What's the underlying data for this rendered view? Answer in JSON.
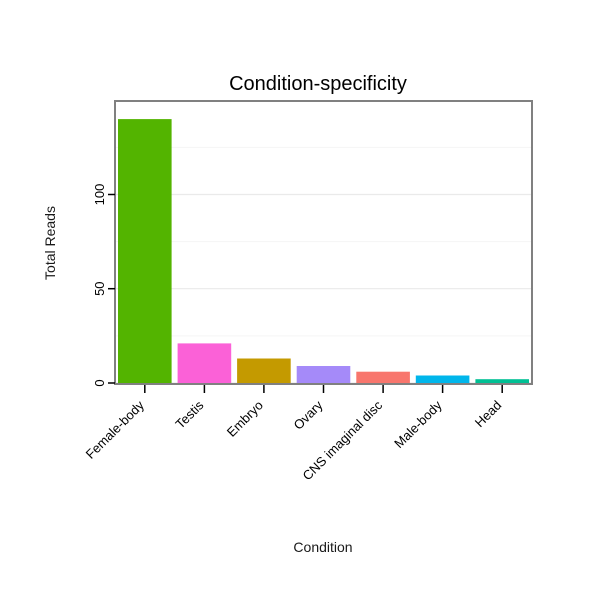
{
  "chart_data": {
    "type": "bar",
    "title": "Condition-specificity",
    "xlabel": "Condition",
    "ylabel": "Total Reads",
    "categories": [
      "Female-body",
      "Testis",
      "Embryo",
      "Ovary",
      "CNS imaginal disc",
      "Male-body",
      "Head"
    ],
    "values": [
      140,
      21,
      13,
      9,
      6,
      4,
      2
    ],
    "bar_colors": [
      "#53B400",
      "#FB61D7",
      "#C49A00",
      "#A58AF9",
      "#F8766D",
      "#00B6EB",
      "#00C094"
    ],
    "ylim": [
      0,
      148
    ],
    "yticks": [
      0,
      50,
      100
    ],
    "grid": "on",
    "legend": "none",
    "plot_border_color": "#808080",
    "gridline_color": "#efefef",
    "background_color": "#ffffff"
  }
}
